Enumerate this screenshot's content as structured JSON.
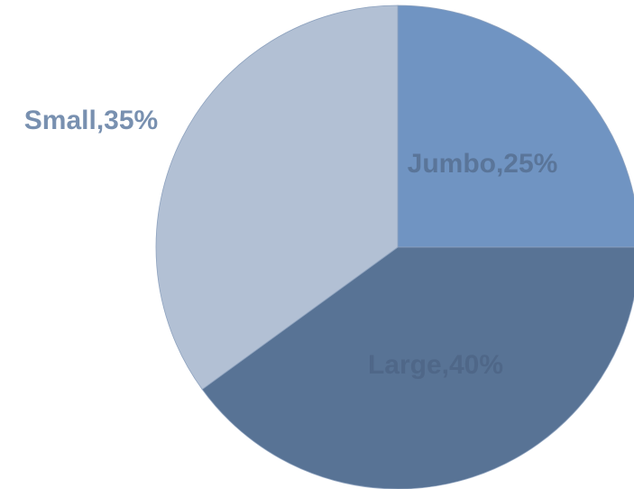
{
  "chart_data": {
    "type": "pie",
    "title": "",
    "slices": [
      {
        "name": "Jumbo",
        "value": 25,
        "label": "Jumbo,25%",
        "color": "#7094C2",
        "label_color": "#5A7599"
      },
      {
        "name": "Large",
        "value": 40,
        "label": "Large,40%",
        "color": "#587395",
        "label_color": "#4F6788"
      },
      {
        "name": "Small",
        "value": 35,
        "label": "Small,35%",
        "color": "#B2C0D4",
        "label_color": "#7890B0"
      }
    ],
    "start_angle_deg": 0,
    "direction": "clockwise",
    "legend": "none",
    "data_labels": "category-and-percent"
  }
}
